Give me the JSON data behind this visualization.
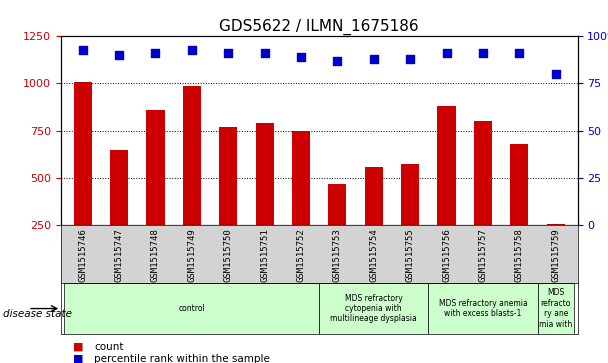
{
  "title": "GDS5622 / ILMN_1675186",
  "samples": [
    "GSM1515746",
    "GSM1515747",
    "GSM1515748",
    "GSM1515749",
    "GSM1515750",
    "GSM1515751",
    "GSM1515752",
    "GSM1515753",
    "GSM1515754",
    "GSM1515755",
    "GSM1515756",
    "GSM1515757",
    "GSM1515758",
    "GSM1515759"
  ],
  "counts": [
    1010,
    650,
    860,
    985,
    770,
    790,
    750,
    470,
    560,
    575,
    880,
    800,
    680,
    255
  ],
  "percentile_ranks": [
    93,
    90,
    91,
    93,
    91,
    91,
    89,
    87,
    88,
    88,
    91,
    91,
    91,
    80
  ],
  "bar_color": "#cc0000",
  "dot_color": "#0000cc",
  "ylim_left": [
    250,
    1250
  ],
  "ylim_right": [
    0,
    100
  ],
  "yticks_left": [
    250,
    500,
    750,
    1000,
    1250
  ],
  "yticks_right": [
    0,
    25,
    50,
    75,
    100
  ],
  "disease_groups": [
    {
      "label": "control",
      "start": 0,
      "end": 6,
      "color": "#ccffcc"
    },
    {
      "label": "MDS refractory\ncytopenia with\nmultilineage dysplasia",
      "start": 7,
      "end": 9,
      "color": "#ccffcc"
    },
    {
      "label": "MDS refractory anemia\nwith excess blasts-1",
      "start": 10,
      "end": 12,
      "color": "#ccffcc"
    },
    {
      "label": "MDS\nrefracto\nry ane\nmia with",
      "start": 13,
      "end": 13,
      "color": "#ccffcc"
    }
  ],
  "disease_state_label": "disease state",
  "legend_count_label": "count",
  "legend_pct_label": "percentile rank within the sample",
  "background_color": "#ffffff",
  "tick_area_color": "#d3d3d3"
}
